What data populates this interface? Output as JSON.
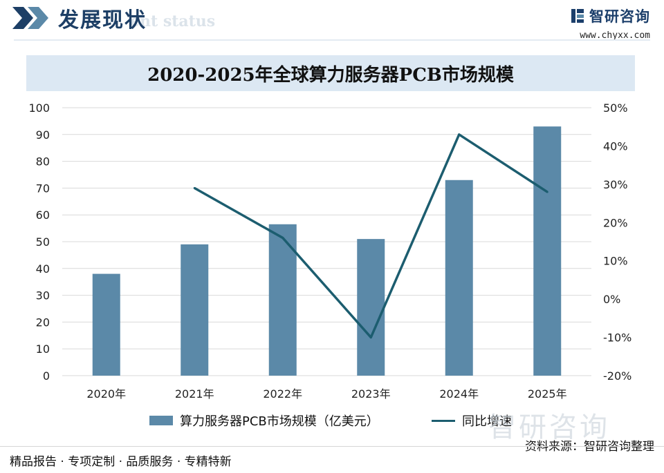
{
  "header": {
    "section_title": "发展现状",
    "section_subtitle": "ent status",
    "brand_name": "智研咨询",
    "brand_url": "www.chyxx.com"
  },
  "footer": {
    "slogan": "精品报告 · 专项定制 · 品质服务 · 专精特新",
    "source": "资料来源：智研咨询整理",
    "watermark": "智研咨询"
  },
  "colors": {
    "bar": "#5b89a8",
    "line": "#1c5d6f",
    "grid": "#d9d9d9",
    "title_band": "#dce8f3"
  },
  "chart_data": {
    "type": "bar",
    "title": "2020-2025年全球算力服务器PCB市场规模",
    "categories": [
      "2020年",
      "2021年",
      "2022年",
      "2023年",
      "2024年",
      "2025年"
    ],
    "series": [
      {
        "name": "算力服务器PCB市场规模（亿美元）",
        "type": "bar",
        "axis": "left",
        "values": [
          38,
          49,
          56.5,
          51,
          73,
          93
        ]
      },
      {
        "name": "同比增速",
        "type": "line",
        "axis": "right",
        "values": [
          null,
          29,
          16,
          -10,
          43,
          28
        ]
      }
    ],
    "y_left": {
      "min": 0,
      "max": 100,
      "ticks": [
        "0",
        "10",
        "20",
        "30",
        "40",
        "50",
        "60",
        "70",
        "80",
        "90",
        "100"
      ]
    },
    "y_right": {
      "min": -20,
      "max": 50,
      "unit": "%",
      "ticks": [
        "-20%",
        "-10%",
        "0%",
        "10%",
        "20%",
        "30%",
        "40%",
        "50%"
      ]
    },
    "grid": true,
    "legend_position": "bottom"
  }
}
